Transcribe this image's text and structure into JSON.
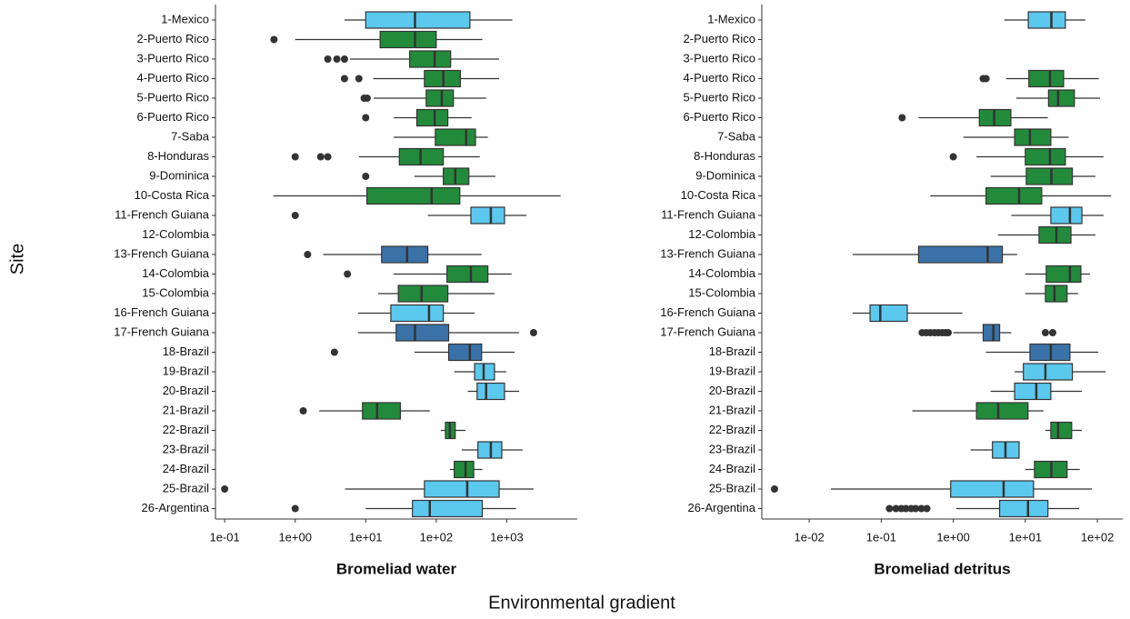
{
  "ylabel": "Site",
  "xlabel": "Environmental gradient",
  "chart_data": [
    {
      "type": "box",
      "title": "Bromeliad water",
      "log_x": true,
      "categories": [
        "1-Mexico",
        "2-Puerto Rico",
        "3-Puerto Rico",
        "4-Puerto Rico",
        "5-Puerto Rico",
        "6-Puerto Rico",
        "7-Saba",
        "8-Honduras",
        "9-Dominica",
        "10-Costa Rica",
        "11-French Guiana",
        "12-Colombia",
        "13-French Guiana",
        "14-Colombia",
        "15-Colombia",
        "16-French Guiana",
        "17-French Guiana",
        "18-Brazil",
        "19-Brazil",
        "20-Brazil",
        "21-Brazil",
        "22-Brazil",
        "23-Brazil",
        "24-Brazil",
        "25-Brazil",
        "26-Argentina"
      ],
      "low": [
        5,
        1,
        6,
        12.8,
        13,
        25,
        25,
        8,
        49,
        0.49,
        76,
        null,
        2.5,
        24.8,
        15,
        7.8,
        7.8,
        49,
        180,
        280,
        2.2,
        116,
        230,
        156,
        5.1,
        10
      ],
      "q1": [
        10,
        16,
        42,
        68,
        72,
        53,
        97,
        30,
        126,
        10.4,
        310,
        null,
        16.8,
        142,
        29,
        22.7,
        27,
        150,
        350,
        380,
        9,
        135,
        390,
        180,
        68,
        46
      ],
      "median": [
        50,
        50,
        95,
        126,
        120,
        95,
        265,
        60,
        186,
        86,
        595,
        null,
        38.6,
        310,
        62,
        79,
        50,
        300,
        470,
        510,
        14.5,
        156,
        595,
        260,
        275,
        81
      ],
      "q3": [
        300,
        100,
        160,
        220,
        175,
        146,
        360,
        126,
        290,
        216,
        930,
        null,
        76,
        540,
        146,
        126,
        150,
        440,
        670,
        930,
        31,
        186,
        850,
        340,
        780,
        450
      ],
      "high": [
        1200,
        450,
        780,
        780,
        510,
        318,
        540,
        415,
        690,
        5800,
        1900,
        null,
        440,
        1170,
        670,
        350,
        1500,
        1290,
        980,
        1500,
        81,
        260,
        1680,
        450,
        2400,
        1350
      ],
      "outliers": [
        [],
        [
          0.5
        ],
        [
          2.9,
          3.9,
          5
        ],
        [
          5,
          8
        ],
        [
          9.5,
          10.5
        ],
        [
          10
        ],
        [],
        [
          1,
          2.3,
          2.9
        ],
        [
          10
        ],
        [],
        [
          1
        ],
        [],
        [
          1.5
        ],
        [
          5.5
        ],
        [],
        [],
        [
          2400
        ],
        [
          3.6
        ],
        [],
        [],
        [
          1.3
        ],
        [],
        [],
        [],
        [
          0.1
        ],
        [
          1
        ]
      ],
      "colors": [
        "#5bc8ee",
        "#228b3b",
        "#228b3b",
        "#228b3b",
        "#228b3b",
        "#228b3b",
        "#228b3b",
        "#228b3b",
        "#228b3b",
        "#228b3b",
        "#5bc8ee",
        null,
        "#3a72a8",
        "#228b3b",
        "#228b3b",
        "#5bc8ee",
        "#3a72a8",
        "#3a72a8",
        "#5bc8ee",
        "#5bc8ee",
        "#228b3b",
        "#228b3b",
        "#5bc8ee",
        "#228b3b",
        "#5bc8ee",
        "#5bc8ee"
      ],
      "xlim": [
        0.074,
        10000
      ],
      "xticks": [
        {
          "value": 0.1,
          "label": "1e-01"
        },
        {
          "value": 1,
          "label": "1e+00"
        },
        {
          "value": 10,
          "label": "1e+01"
        },
        {
          "value": 100,
          "label": "1e+02"
        },
        {
          "value": 1000,
          "label": "1e+03"
        }
      ]
    },
    {
      "type": "box",
      "title": "Bromeliad detritus",
      "log_x": true,
      "categories": [
        "1-Mexico",
        "2-Puerto Rico",
        "3-Puerto Rico",
        "4-Puerto Rico",
        "5-Puerto Rico",
        "6-Puerto Rico",
        "7-Saba",
        "8-Honduras",
        "9-Dominica",
        "10-Costa Rica",
        "11-French Guiana",
        "12-Colombia",
        "13-French Guiana",
        "14-Colombia",
        "15-Colombia",
        "16-French Guiana",
        "17-French Guiana",
        "18-Brazil",
        "19-Brazil",
        "20-Brazil",
        "21-Brazil",
        "22-Brazil",
        "23-Brazil",
        "24-Brazil",
        "25-Brazil",
        "26-Argentina"
      ],
      "low": [
        5.1,
        null,
        null,
        5.4,
        7.5,
        0.33,
        1.38,
        2.1,
        3.3,
        0.48,
        6.4,
        4.2,
        0.04,
        10,
        10,
        0.04,
        1,
        2.85,
        7.1,
        3.3,
        0.27,
        19,
        1.74,
        10,
        0.02,
        1.1
      ],
      "q1": [
        11,
        null,
        null,
        11.2,
        21,
        2.3,
        7.1,
        10,
        10.3,
        2.85,
        22.6,
        15.5,
        0.33,
        19.5,
        19,
        0.07,
        2.6,
        11.6,
        9.4,
        7.1,
        2.1,
        22.6,
        3.5,
        13.4,
        0.92,
        4.4
      ],
      "median": [
        23,
        null,
        null,
        22,
        28.5,
        3.7,
        11.6,
        22,
        23,
        8.2,
        41.6,
        27,
        3,
        41.6,
        25.4,
        0.097,
        3.6,
        22.6,
        19,
        14.2,
        4.2,
        28.5,
        5.3,
        23,
        5,
        10.9
      ],
      "q3": [
        36,
        null,
        null,
        34,
        48,
        6.3,
        22.6,
        36,
        45,
        16.9,
        61,
        43,
        4.8,
        59,
        38,
        0.23,
        4.4,
        41.6,
        45,
        22.6,
        10.9,
        44,
        8.2,
        38,
        13,
        20.6
      ],
      "high": [
        68,
        null,
        null,
        105,
        109,
        20.6,
        40,
        122,
        94,
        155,
        122,
        94,
        7.7,
        79,
        54,
        1.34,
        6.4,
        103,
        130,
        61,
        17.9,
        61,
        8.2,
        57,
        84,
        56
      ],
      "outliers": [
        [],
        [],
        [],
        [
          2.6,
          2.85
        ],
        [],
        [
          0.195
        ],
        [],
        [
          1
        ],
        [],
        [],
        [],
        [],
        [],
        [],
        [],
        [],
        [
          0.37,
          0.42,
          0.48,
          0.55,
          0.62,
          0.7,
          0.78,
          0.85,
          19,
          24
        ],
        [],
        [],
        [],
        [],
        [],
        [],
        [],
        [
          0.0033
        ],
        [
          0.13,
          0.16,
          0.19,
          0.22,
          0.26,
          0.3,
          0.36,
          0.43
        ]
      ],
      "colors": [
        "#5bc8ee",
        null,
        null,
        "#228b3b",
        "#228b3b",
        "#228b3b",
        "#228b3b",
        "#228b3b",
        "#228b3b",
        "#228b3b",
        "#5bc8ee",
        "#228b3b",
        "#3a72a8",
        "#228b3b",
        "#228b3b",
        "#5bc8ee",
        "#3a72a8",
        "#3a72a8",
        "#5bc8ee",
        "#5bc8ee",
        "#228b3b",
        "#228b3b",
        "#5bc8ee",
        "#228b3b",
        "#5bc8ee",
        "#5bc8ee"
      ],
      "xlim": [
        0.0022,
        225
      ],
      "xticks": [
        {
          "value": 0.01,
          "label": "1e-02"
        },
        {
          "value": 0.1,
          "label": "1e-01"
        },
        {
          "value": 1,
          "label": "1e+00"
        },
        {
          "value": 10,
          "label": "1e+01"
        },
        {
          "value": 100,
          "label": "1e+02"
        }
      ]
    }
  ]
}
